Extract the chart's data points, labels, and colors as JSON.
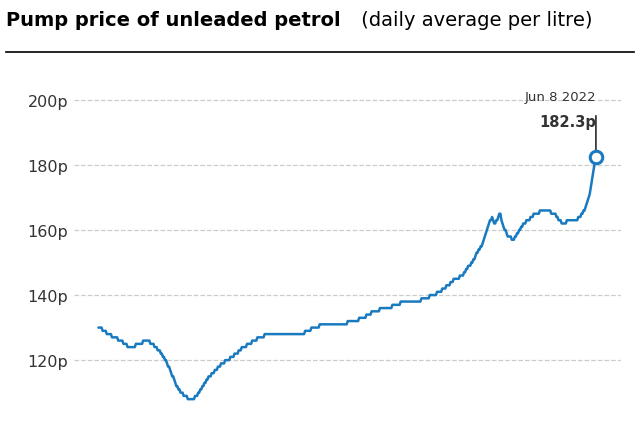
{
  "title_bold": "Pump price of unleaded petrol",
  "title_regular": " (daily average per litre)",
  "annotation_date": "Jun 8 2022",
  "annotation_value": "182.3p",
  "line_color": "#1a7abf",
  "background_color": "#ffffff",
  "grid_color": "#cccccc",
  "text_color": "#333333",
  "ylim": [
    105,
    210
  ],
  "yticks": [
    120,
    140,
    160,
    180,
    200
  ],
  "figsize": [
    6.4,
    4.27
  ],
  "dpi": 100,
  "series": [
    130,
    130,
    130,
    130,
    129,
    129,
    129,
    129,
    128,
    128,
    128,
    128,
    128,
    127,
    127,
    127,
    127,
    127,
    127,
    126,
    126,
    126,
    126,
    126,
    125,
    125,
    125,
    125,
    124,
    124,
    124,
    124,
    124,
    124,
    124,
    124,
    125,
    125,
    125,
    125,
    125,
    125,
    125,
    126,
    126,
    126,
    126,
    126,
    126,
    126,
    125,
    125,
    125,
    125,
    124,
    124,
    124,
    123,
    123,
    123,
    122,
    122,
    121,
    121,
    120,
    120,
    119,
    118,
    118,
    117,
    116,
    115,
    115,
    114,
    113,
    112,
    112,
    111,
    111,
    110,
    110,
    110,
    109,
    109,
    109,
    109,
    108,
    108,
    108,
    108,
    108,
    108,
    108,
    109,
    109,
    109,
    110,
    110,
    111,
    111,
    112,
    112,
    113,
    113,
    114,
    114,
    115,
    115,
    115,
    116,
    116,
    116,
    117,
    117,
    117,
    118,
    118,
    118,
    119,
    119,
    119,
    119,
    120,
    120,
    120,
    120,
    120,
    121,
    121,
    121,
    121,
    122,
    122,
    122,
    122,
    123,
    123,
    123,
    124,
    124,
    124,
    124,
    124,
    125,
    125,
    125,
    125,
    125,
    126,
    126,
    126,
    126,
    126,
    127,
    127,
    127,
    127,
    127,
    127,
    127,
    128,
    128,
    128,
    128,
    128,
    128,
    128,
    128,
    128,
    128,
    128,
    128,
    128,
    128,
    128,
    128,
    128,
    128,
    128,
    128,
    128,
    128,
    128,
    128,
    128,
    128,
    128,
    128,
    128,
    128,
    128,
    128,
    128,
    128,
    128,
    128,
    128,
    128,
    128,
    129,
    129,
    129,
    129,
    129,
    129,
    130,
    130,
    130,
    130,
    130,
    130,
    130,
    130,
    131,
    131,
    131,
    131,
    131,
    131,
    131,
    131,
    131,
    131,
    131,
    131,
    131,
    131,
    131,
    131,
    131,
    131,
    131,
    131,
    131,
    131,
    131,
    131,
    131,
    131,
    131,
    132,
    132,
    132,
    132,
    132,
    132,
    132,
    132,
    132,
    132,
    132,
    133,
    133,
    133,
    133,
    133,
    133,
    133,
    134,
    134,
    134,
    134,
    134,
    135,
    135,
    135,
    135,
    135,
    135,
    135,
    135,
    136,
    136,
    136,
    136,
    136,
    136,
    136,
    136,
    136,
    136,
    136,
    136,
    137,
    137,
    137,
    137,
    137,
    137,
    137,
    137,
    138,
    138,
    138,
    138,
    138,
    138,
    138,
    138,
    138,
    138,
    138,
    138,
    138,
    138,
    138,
    138,
    138,
    138,
    138,
    138,
    139,
    139,
    139,
    139,
    139,
    139,
    139,
    139,
    140,
    140,
    140,
    140,
    140,
    140,
    140,
    141,
    141,
    141,
    141,
    141,
    142,
    142,
    142,
    142,
    143,
    143,
    143,
    143,
    144,
    144,
    144,
    145,
    145,
    145,
    145,
    145,
    145,
    146,
    146,
    146,
    146,
    147,
    147,
    148,
    148,
    149,
    149,
    149,
    150,
    150,
    151,
    151,
    152,
    153,
    153,
    154,
    154,
    155,
    155,
    156,
    157,
    158,
    159,
    160,
    161,
    162,
    163,
    163,
    164,
    163,
    162,
    162,
    163,
    163,
    164,
    165,
    165,
    163,
    162,
    161,
    160,
    160,
    159,
    158,
    158,
    158,
    158,
    157,
    157,
    157,
    158,
    158,
    159,
    159,
    160,
    160,
    161,
    161,
    162,
    162,
    162,
    163,
    163,
    163,
    163,
    164,
    164,
    164,
    165,
    165,
    165,
    165,
    165,
    165,
    166,
    166,
    166,
    166,
    166,
    166,
    166,
    166,
    166,
    166,
    166,
    165,
    165,
    165,
    165,
    165,
    164,
    164,
    163,
    163,
    163,
    162,
    162,
    162,
    162,
    162,
    163,
    163,
    163,
    163,
    163,
    163,
    163,
    163,
    163,
    163,
    163,
    164,
    164,
    164,
    165,
    165,
    166,
    166,
    167,
    168,
    169,
    170,
    171,
    173,
    175,
    177,
    179,
    181,
    182.3
  ]
}
